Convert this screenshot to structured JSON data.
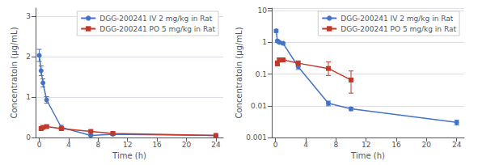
{
  "chart_data": [
    {
      "type": "line",
      "xlabel": "Time (h)",
      "ylabel": "Concentratoin (μg/mL)",
      "xlim": [
        -0.5,
        25
      ],
      "xticks": [
        0,
        4,
        8,
        12,
        16,
        20,
        24
      ],
      "ylim": [
        0,
        3.2
      ],
      "yticks": [
        0,
        1,
        2,
        3
      ],
      "grid": true,
      "legend": "upper right",
      "series": [
        {
          "name": "DGG-200241 IV 2 mg/kg in Rat",
          "color": "#4472C4",
          "marker": "circle",
          "x": [
            0,
            0.25,
            0.5,
            1,
            3,
            7,
            10,
            24
          ],
          "values": [
            2.03,
            1.65,
            1.35,
            0.93,
            0.25,
            0.05,
            0.08,
            0.05
          ],
          "yerr": [
            0.15,
            0.12,
            0.1,
            0.08,
            0.05,
            0.01,
            0.015,
            0.01
          ]
        },
        {
          "name": "DGG-200241 PO 5 mg/kg in Rat",
          "color": "#C0392B",
          "marker": "square",
          "x": [
            0.25,
            0.5,
            1,
            3,
            7,
            10,
            24
          ],
          "values": [
            0.22,
            0.25,
            0.27,
            0.22,
            0.15,
            0.1,
            0.05
          ],
          "yerr": [
            0.03,
            0.03,
            0.03,
            0.03,
            0.03,
            0.02,
            0.01
          ]
        }
      ]
    },
    {
      "type": "line",
      "log": "y",
      "xlabel": "Time (h)",
      "ylabel": "Concentratoin (μg/mL)",
      "xlim": [
        -0.5,
        25
      ],
      "xticks": [
        0,
        4,
        8,
        12,
        16,
        20,
        24
      ],
      "ylim": [
        0.001,
        12
      ],
      "yticks": [
        0.001,
        0.01,
        0.1,
        1,
        10
      ],
      "grid": true,
      "legend": "upper right",
      "series": [
        {
          "name": "DGG-200241 IV 2 mg/kg in Rat",
          "color": "#4472C4",
          "marker": "circle",
          "x": [
            0.083,
            0.25,
            0.5,
            1,
            3,
            7,
            10,
            24
          ],
          "values": [
            2.3,
            1.1,
            1.0,
            0.93,
            0.17,
            0.012,
            0.008,
            0.003
          ],
          "yerr": [
            0.25,
            0.1,
            0.08,
            0.07,
            0.03,
            0.002,
            0.001,
            0.0005
          ]
        },
        {
          "name": "DGG-200241 PO 5 mg/kg in Rat",
          "color": "#C0392B",
          "marker": "square",
          "x": [
            0.25,
            0.5,
            1,
            3,
            7,
            10
          ],
          "values": [
            0.22,
            0.28,
            0.28,
            0.22,
            0.15,
            0.065
          ],
          "yerr_lower": [
            0.04,
            0.04,
            0.04,
            0.04,
            0.06,
            0.04
          ],
          "yerr_upper": [
            0.04,
            0.04,
            0.04,
            0.04,
            0.09,
            0.06
          ]
        }
      ]
    }
  ]
}
